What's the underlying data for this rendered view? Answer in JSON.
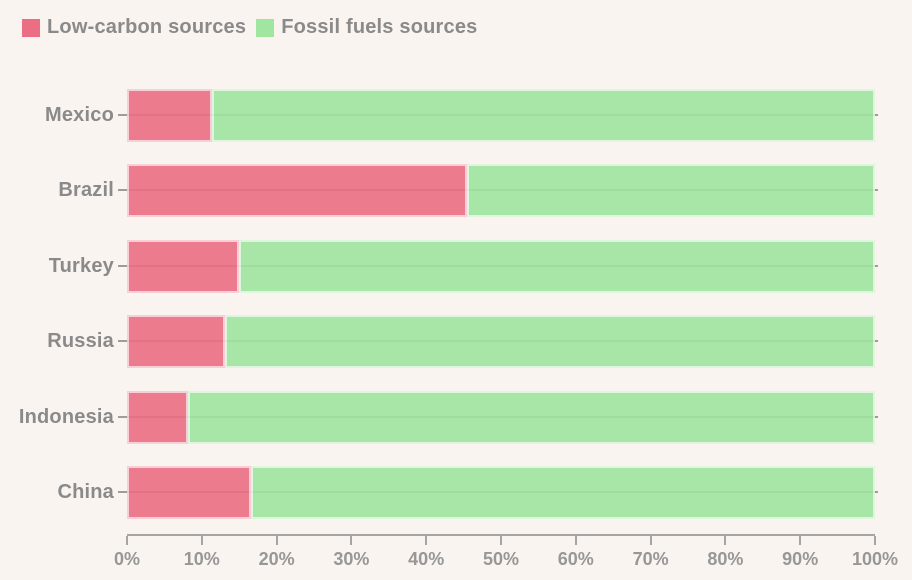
{
  "legend": {
    "items": [
      {
        "label": "Low-carbon sources",
        "color": "#EC6E84"
      },
      {
        "label": "Fossil fuels sources",
        "color": "#A0E5A0"
      }
    ]
  },
  "chart_data": {
    "type": "bar",
    "orientation": "horizontal",
    "stacked": true,
    "unit": "percent",
    "title": "",
    "xlabel": "",
    "ylabel": "",
    "categories": [
      "Mexico",
      "Brazil",
      "Turkey",
      "Russia",
      "Indonesia",
      "China"
    ],
    "series": [
      {
        "name": "Low-carbon sources",
        "color": "#EC6E84",
        "values": [
          11.4,
          45.5,
          15.0,
          13.1,
          8.2,
          16.6
        ]
      },
      {
        "name": "Fossil fuels sources",
        "color": "#A0E5A0",
        "values": [
          88.6,
          54.5,
          85.0,
          86.9,
          91.8,
          83.4
        ]
      }
    ],
    "xlim": [
      0,
      100
    ],
    "x_tick_labels": [
      "0%",
      "10%",
      "20%",
      "30%",
      "40%",
      "50%",
      "60%",
      "70%",
      "80%",
      "90%",
      "100%"
    ],
    "legend_position": "top-left",
    "grid": "horizontal-row-center-lines",
    "background_color": "#FAF4F0"
  },
  "colors": {
    "background": "#FAF4F0",
    "label_text": "#8A8A8A",
    "tick_text": "#979797",
    "axis_line": "#A5A5A5",
    "row_line": "#9C9C9C"
  }
}
